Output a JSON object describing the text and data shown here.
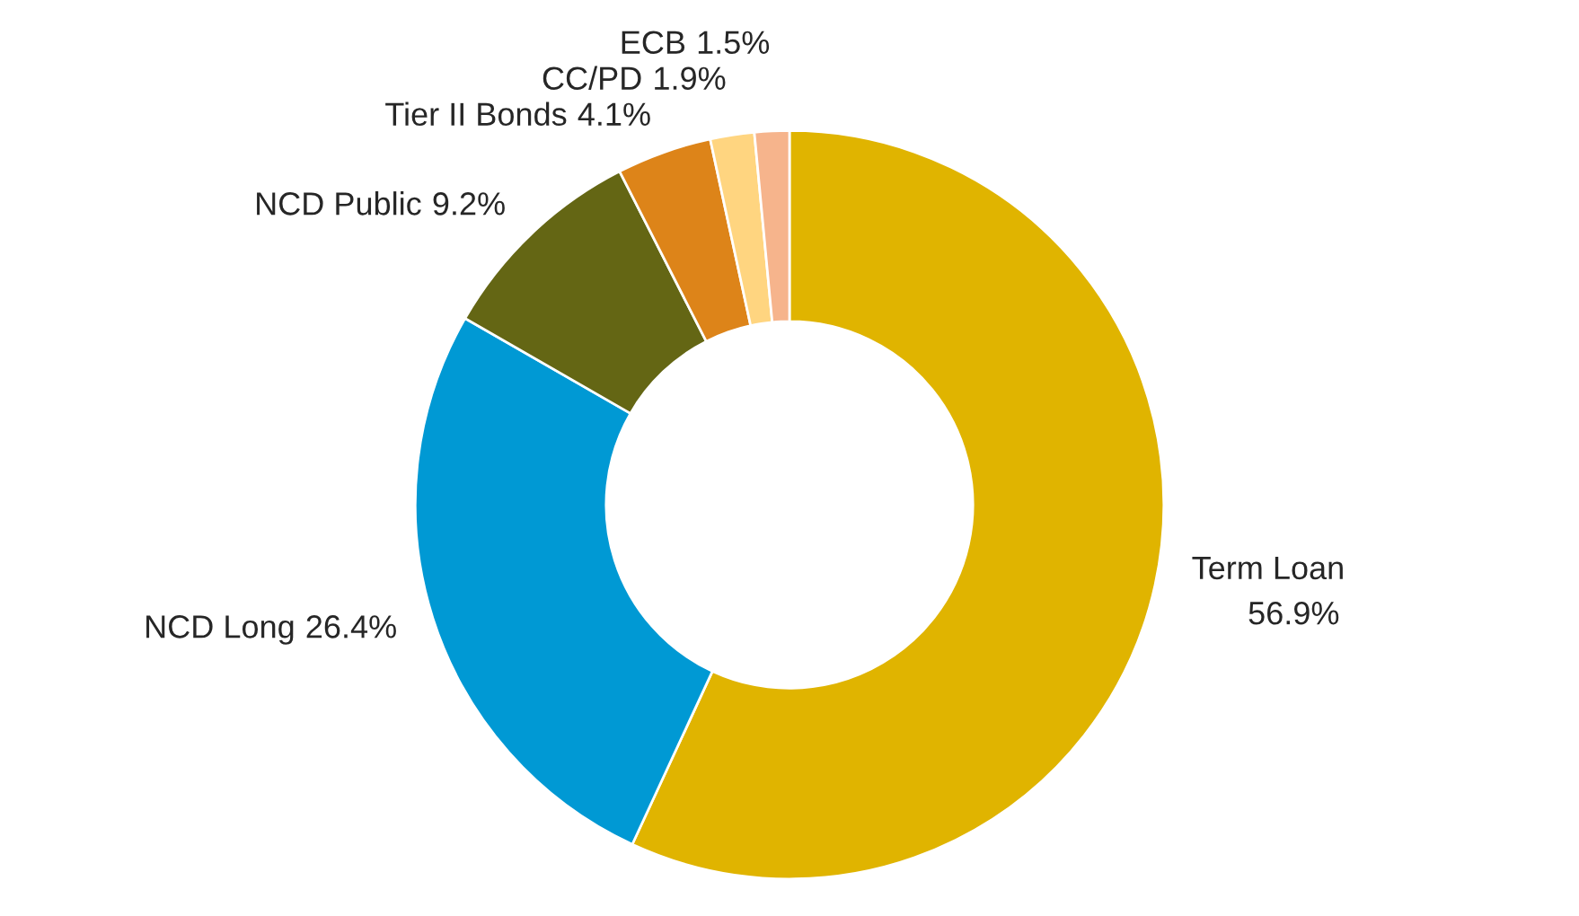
{
  "chart_data": {
    "type": "donut",
    "categories": [
      "Term Loan",
      "NCD Long",
      "NCD Public",
      "Tier II Bonds",
      "CC/PD",
      "ECB"
    ],
    "values": [
      56.9,
      26.4,
      9.2,
      4.1,
      1.9,
      1.5
    ],
    "value_labels": [
      "56.9%",
      "26.4%",
      "9.2%",
      "4.1%",
      "1.9%",
      "1.5%"
    ],
    "colors": [
      "#e0b400",
      "#0099d4",
      "#646614",
      "#dd8419",
      "#ffd580",
      "#f6b48c"
    ]
  }
}
